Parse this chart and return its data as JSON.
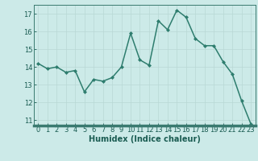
{
  "x": [
    0,
    1,
    2,
    3,
    4,
    5,
    6,
    7,
    8,
    9,
    10,
    11,
    12,
    13,
    14,
    15,
    16,
    17,
    18,
    19,
    20,
    21,
    22,
    23
  ],
  "y": [
    14.2,
    13.9,
    14.0,
    13.7,
    13.8,
    12.6,
    13.3,
    13.2,
    13.4,
    14.0,
    15.9,
    14.4,
    14.1,
    16.6,
    16.1,
    17.2,
    16.8,
    15.6,
    15.2,
    15.2,
    14.3,
    13.6,
    12.1,
    10.8
  ],
  "line_color": "#2e7d6e",
  "marker": "D",
  "markersize": 2.0,
  "linewidth": 1.1,
  "xlabel": "Humidex (Indice chaleur)",
  "xlabel_fontsize": 7,
  "xlabel_color": "#1a5c52",
  "xlim": [
    -0.5,
    23.5
  ],
  "ylim": [
    10.7,
    17.5
  ],
  "yticks": [
    11,
    12,
    13,
    14,
    15,
    16,
    17
  ],
  "xticks": [
    0,
    1,
    2,
    3,
    4,
    5,
    6,
    7,
    8,
    9,
    10,
    11,
    12,
    13,
    14,
    15,
    16,
    17,
    18,
    19,
    20,
    21,
    22,
    23
  ],
  "tick_fontsize": 6.0,
  "tick_color": "#1a5c52",
  "bg_color": "#cceae8",
  "grid_color": "#b8d8d5",
  "spine_color": "#3a7a70",
  "bottom_bar_color": "#3a7a70"
}
